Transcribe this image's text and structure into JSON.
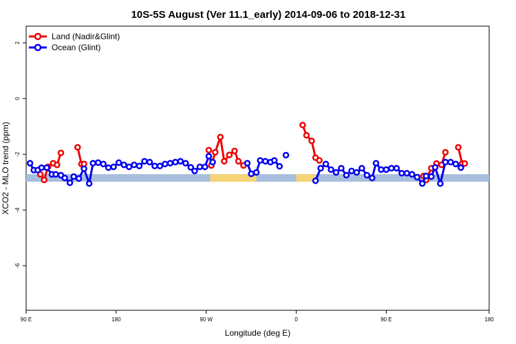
{
  "chart_data": {
    "type": "line",
    "title": "10S-5S August (Ver 11.1_early)   2014-09-06 to 2018-12-31",
    "xlabel": "Longitude (deg E)",
    "ylabel": "XCO2 - MLO trend (ppm)",
    "xlim": [
      90,
      450
    ],
    "ylim": [
      -7.6,
      2.6
    ],
    "x_ticks": [
      {
        "value": 90,
        "label": "90 E"
      },
      {
        "value": 160,
        "label": "180"
      },
      {
        "value": 230,
        "label": "90 W"
      },
      {
        "value": 300,
        "label": "0"
      },
      {
        "value": 370,
        "label": "90 E"
      },
      {
        "value": 450,
        "label": "180"
      }
    ],
    "y_ticks": [
      {
        "value": 2,
        "label": "2"
      },
      {
        "value": 0,
        "label": "0"
      },
      {
        "value": -2,
        "label": "-2"
      },
      {
        "value": -4,
        "label": "-4"
      },
      {
        "value": -6,
        "label": "-6"
      }
    ],
    "legend": {
      "position": "top-left"
    },
    "series": [
      {
        "name": "Land (Nadir&Glint)",
        "color": "#ee0000",
        "segments": [
          [
            [
              101,
              -2.72
            ],
            [
              104,
              -2.92
            ],
            [
              107,
              -2.45
            ],
            [
              111,
              -2.32
            ],
            [
              114,
              -2.38
            ],
            [
              117,
              -1.95
            ]
          ],
          [
            [
              130,
              -1.75
            ],
            [
              133,
              -2.35
            ],
            [
              135,
              -2.35
            ]
          ],
          [
            [
              232,
              -1.85
            ],
            [
              234,
              -2.4
            ],
            [
              237,
              -1.93
            ],
            [
              241,
              -1.38
            ],
            [
              244,
              -2.25
            ],
            [
              248,
              -2.02
            ],
            [
              252,
              -1.88
            ],
            [
              255,
              -2.25
            ],
            [
              259,
              -2.4
            ]
          ],
          [
            [
              305,
              -0.95
            ],
            [
              308,
              -1.32
            ],
            [
              312,
              -1.52
            ],
            [
              315,
              -2.12
            ],
            [
              318,
              -2.22
            ]
          ],
          [
            [
              399,
              -2.78
            ],
            [
              401,
              -2.92
            ],
            [
              405,
              -2.5
            ],
            [
              409,
              -2.33
            ],
            [
              413,
              -2.38
            ],
            [
              416,
              -1.93
            ]
          ],
          [
            [
              426,
              -1.75
            ],
            [
              429,
              -2.33
            ],
            [
              431,
              -2.33
            ]
          ]
        ]
      },
      {
        "name": "Ocean (Glint)",
        "color": "#0000ee",
        "segments": [
          [
            [
              93,
              -2.32
            ],
            [
              96,
              -2.57
            ],
            [
              99,
              -2.57
            ],
            [
              102,
              -2.48
            ],
            [
              106,
              -2.48
            ],
            [
              110,
              -2.72
            ],
            [
              113,
              -2.72
            ],
            [
              117,
              -2.75
            ],
            [
              120,
              -2.85
            ],
            [
              124,
              -3.02
            ],
            [
              127,
              -2.8
            ],
            [
              131,
              -2.87
            ],
            [
              135,
              -2.52
            ],
            [
              139,
              -3.05
            ],
            [
              142,
              -2.32
            ],
            [
              146,
              -2.3
            ],
            [
              150,
              -2.35
            ],
            [
              154,
              -2.48
            ],
            [
              158,
              -2.45
            ],
            [
              162,
              -2.3
            ],
            [
              166,
              -2.38
            ],
            [
              170,
              -2.45
            ],
            [
              174,
              -2.38
            ],
            [
              178,
              -2.42
            ],
            [
              182,
              -2.25
            ],
            [
              186,
              -2.28
            ],
            [
              190,
              -2.42
            ],
            [
              194,
              -2.42
            ],
            [
              198,
              -2.35
            ],
            [
              202,
              -2.32
            ],
            [
              206,
              -2.28
            ],
            [
              210,
              -2.25
            ],
            [
              214,
              -2.32
            ],
            [
              218,
              -2.47
            ],
            [
              221,
              -2.6
            ],
            [
              225,
              -2.45
            ],
            [
              229,
              -2.45
            ],
            [
              232,
              -2.07
            ],
            [
              235,
              -2.28
            ]
          ],
          [
            [
              262,
              -2.32
            ],
            [
              265,
              -2.7
            ],
            [
              269,
              -2.65
            ],
            [
              272,
              -2.22
            ],
            [
              276,
              -2.25
            ],
            [
              280,
              -2.28
            ],
            [
              283,
              -2.22
            ],
            [
              287,
              -2.43
            ]
          ],
          [
            [
              292,
              -2.03
            ]
          ],
          [
            [
              315,
              -2.95
            ],
            [
              319,
              -2.5
            ],
            [
              323,
              -2.35
            ],
            [
              327,
              -2.55
            ],
            [
              331,
              -2.65
            ],
            [
              335,
              -2.5
            ],
            [
              339,
              -2.75
            ],
            [
              343,
              -2.6
            ],
            [
              347,
              -2.65
            ],
            [
              351,
              -2.5
            ],
            [
              355,
              -2.75
            ],
            [
              359,
              -2.85
            ],
            [
              362,
              -2.32
            ],
            [
              366,
              -2.55
            ],
            [
              370,
              -2.55
            ],
            [
              374,
              -2.5
            ],
            [
              378,
              -2.5
            ],
            [
              382,
              -2.68
            ],
            [
              386,
              -2.68
            ],
            [
              390,
              -2.72
            ],
            [
              394,
              -2.82
            ],
            [
              398,
              -3.05
            ],
            [
              401,
              -2.78
            ],
            [
              405,
              -2.8
            ],
            [
              408,
              -2.47
            ],
            [
              412,
              -3.05
            ],
            [
              416,
              -2.28
            ],
            [
              420,
              -2.28
            ],
            [
              424,
              -2.35
            ],
            [
              428,
              -2.48
            ]
          ]
        ]
      }
    ],
    "bands": [
      {
        "y": -2.85,
        "x_range": [
          90,
          450
        ],
        "color": "#a8bedd"
      },
      {
        "y": -2.85,
        "x_range": [
          233,
          269
        ],
        "color": "#f5d478"
      },
      {
        "y": -2.85,
        "x_range": [
          300,
          315
        ],
        "color": "#f5d478"
      }
    ]
  }
}
